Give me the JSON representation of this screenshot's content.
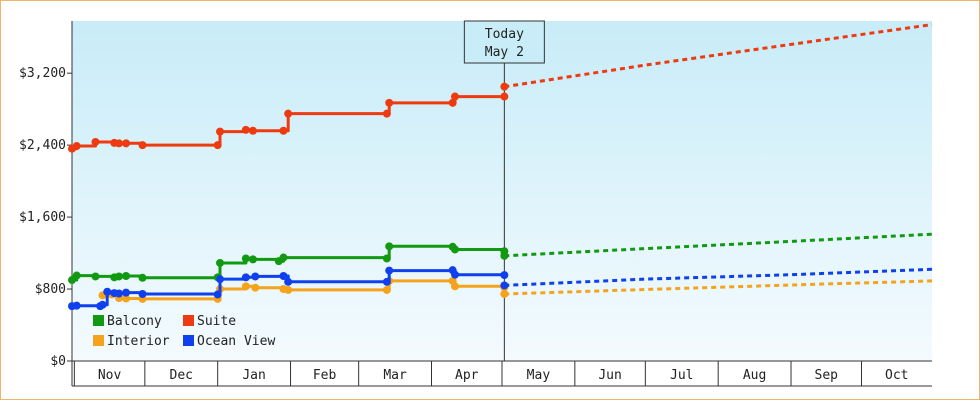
{
  "chart_data": {
    "type": "line",
    "y_ticks": [
      "$0",
      "$800",
      "$1,600",
      "$2,400",
      "$3,200"
    ],
    "y_tick_values": [
      0,
      800,
      1600,
      2400,
      3200
    ],
    "ylim": [
      0,
      3780
    ],
    "x_domain": [
      "2023-10-31",
      "2024-10-31"
    ],
    "x_months": [
      {
        "label": "Nov",
        "start": "2023-11-01",
        "end": "2023-12-01"
      },
      {
        "label": "Dec",
        "start": "2023-12-01",
        "end": "2024-01-01"
      },
      {
        "label": "Jan",
        "start": "2024-01-01",
        "end": "2024-02-01"
      },
      {
        "label": "Feb",
        "start": "2024-02-01",
        "end": "2024-03-01"
      },
      {
        "label": "Mar",
        "start": "2024-03-01",
        "end": "2024-04-01"
      },
      {
        "label": "Apr",
        "start": "2024-04-01",
        "end": "2024-05-01"
      },
      {
        "label": "May",
        "start": "2024-05-01",
        "end": "2024-06-01"
      },
      {
        "label": "Jun",
        "start": "2024-06-01",
        "end": "2024-07-01"
      },
      {
        "label": "Jul",
        "start": "2024-07-01",
        "end": "2024-08-01"
      },
      {
        "label": "Aug",
        "start": "2024-08-01",
        "end": "2024-09-01"
      },
      {
        "label": "Sep",
        "start": "2024-09-01",
        "end": "2024-10-01"
      },
      {
        "label": "Oct",
        "start": "2024-10-01",
        "end": "2024-10-31"
      }
    ],
    "today": {
      "line1": "Today",
      "line2": "May 2",
      "date": "2024-05-02"
    },
    "grid": false,
    "legend": {
      "placement": "bottom-left"
    },
    "series": [
      {
        "name": "Balcony",
        "color": "#119a11",
        "history": [
          [
            "2023-10-31",
            900
          ],
          [
            "2023-11-02",
            950
          ],
          [
            "2023-11-10",
            940
          ],
          [
            "2023-11-18",
            930
          ],
          [
            "2023-11-20",
            940
          ],
          [
            "2023-11-23",
            945
          ],
          [
            "2023-11-30",
            925
          ],
          [
            "2024-01-01",
            930
          ],
          [
            "2024-01-02",
            1090
          ],
          [
            "2024-01-13",
            1140
          ],
          [
            "2024-01-16",
            1130
          ],
          [
            "2024-01-27",
            1110
          ],
          [
            "2024-01-29",
            1150
          ],
          [
            "2024-03-13",
            1140
          ],
          [
            "2024-03-14",
            1275
          ],
          [
            "2024-04-10",
            1270
          ],
          [
            "2024-04-11",
            1240
          ],
          [
            "2024-05-02",
            1220
          ]
        ],
        "forecast": [
          [
            "2024-05-02",
            1170
          ],
          [
            "2024-07-01",
            1250
          ],
          [
            "2024-09-01",
            1330
          ],
          [
            "2024-10-31",
            1410
          ]
        ]
      },
      {
        "name": "Suite",
        "color": "#ee3a10",
        "history": [
          [
            "2023-10-31",
            2360
          ],
          [
            "2023-11-02",
            2390
          ],
          [
            "2023-11-10",
            2435
          ],
          [
            "2023-11-18",
            2425
          ],
          [
            "2023-11-20",
            2420
          ],
          [
            "2023-11-23",
            2420
          ],
          [
            "2023-11-30",
            2400
          ],
          [
            "2024-01-01",
            2400
          ],
          [
            "2024-01-02",
            2550
          ],
          [
            "2024-01-13",
            2570
          ],
          [
            "2024-01-16",
            2560
          ],
          [
            "2024-01-29",
            2560
          ],
          [
            "2024-01-31",
            2750
          ],
          [
            "2024-03-13",
            2750
          ],
          [
            "2024-03-14",
            2870
          ],
          [
            "2024-04-10",
            2870
          ],
          [
            "2024-04-11",
            2940
          ],
          [
            "2024-05-02",
            2940
          ]
        ],
        "forecast": [
          [
            "2024-05-02",
            3050
          ],
          [
            "2024-07-01",
            3290
          ],
          [
            "2024-09-01",
            3520
          ],
          [
            "2024-10-31",
            3740
          ]
        ]
      },
      {
        "name": "Interior",
        "color": "#f5a21c",
        "history": [
          [
            "2023-11-13",
            730
          ],
          [
            "2023-11-17",
            740
          ],
          [
            "2023-11-20",
            700
          ],
          [
            "2023-11-23",
            695
          ],
          [
            "2023-11-30",
            690
          ],
          [
            "2024-01-01",
            690
          ],
          [
            "2024-01-02",
            800
          ],
          [
            "2024-01-13",
            830
          ],
          [
            "2024-01-17",
            815
          ],
          [
            "2024-01-29",
            800
          ],
          [
            "2024-01-31",
            790
          ],
          [
            "2024-03-13",
            790
          ],
          [
            "2024-03-14",
            890
          ],
          [
            "2024-04-10",
            890
          ],
          [
            "2024-04-11",
            830
          ],
          [
            "2024-05-02",
            820
          ]
        ],
        "forecast": [
          [
            "2024-05-02",
            745
          ],
          [
            "2024-07-01",
            795
          ],
          [
            "2024-09-01",
            845
          ],
          [
            "2024-10-31",
            890
          ]
        ]
      },
      {
        "name": "Ocean View",
        "color": "#1040ee",
        "history": [
          [
            "2023-10-31",
            610
          ],
          [
            "2023-11-02",
            615
          ],
          [
            "2023-11-12",
            610
          ],
          [
            "2023-11-13",
            625
          ],
          [
            "2023-11-15",
            770
          ],
          [
            "2023-11-18",
            755
          ],
          [
            "2023-11-20",
            750
          ],
          [
            "2023-11-23",
            760
          ],
          [
            "2023-11-30",
            745
          ],
          [
            "2024-01-01",
            740
          ],
          [
            "2024-01-02",
            910
          ],
          [
            "2024-01-13",
            930
          ],
          [
            "2024-01-17",
            940
          ],
          [
            "2024-01-29",
            945
          ],
          [
            "2024-01-31",
            880
          ],
          [
            "2024-03-13",
            880
          ],
          [
            "2024-03-14",
            1005
          ],
          [
            "2024-04-10",
            1010
          ],
          [
            "2024-04-11",
            960
          ],
          [
            "2024-05-02",
            955
          ]
        ],
        "forecast": [
          [
            "2024-05-02",
            840
          ],
          [
            "2024-07-01",
            910
          ],
          [
            "2024-09-01",
            960
          ],
          [
            "2024-10-31",
            1020
          ]
        ]
      }
    ]
  }
}
